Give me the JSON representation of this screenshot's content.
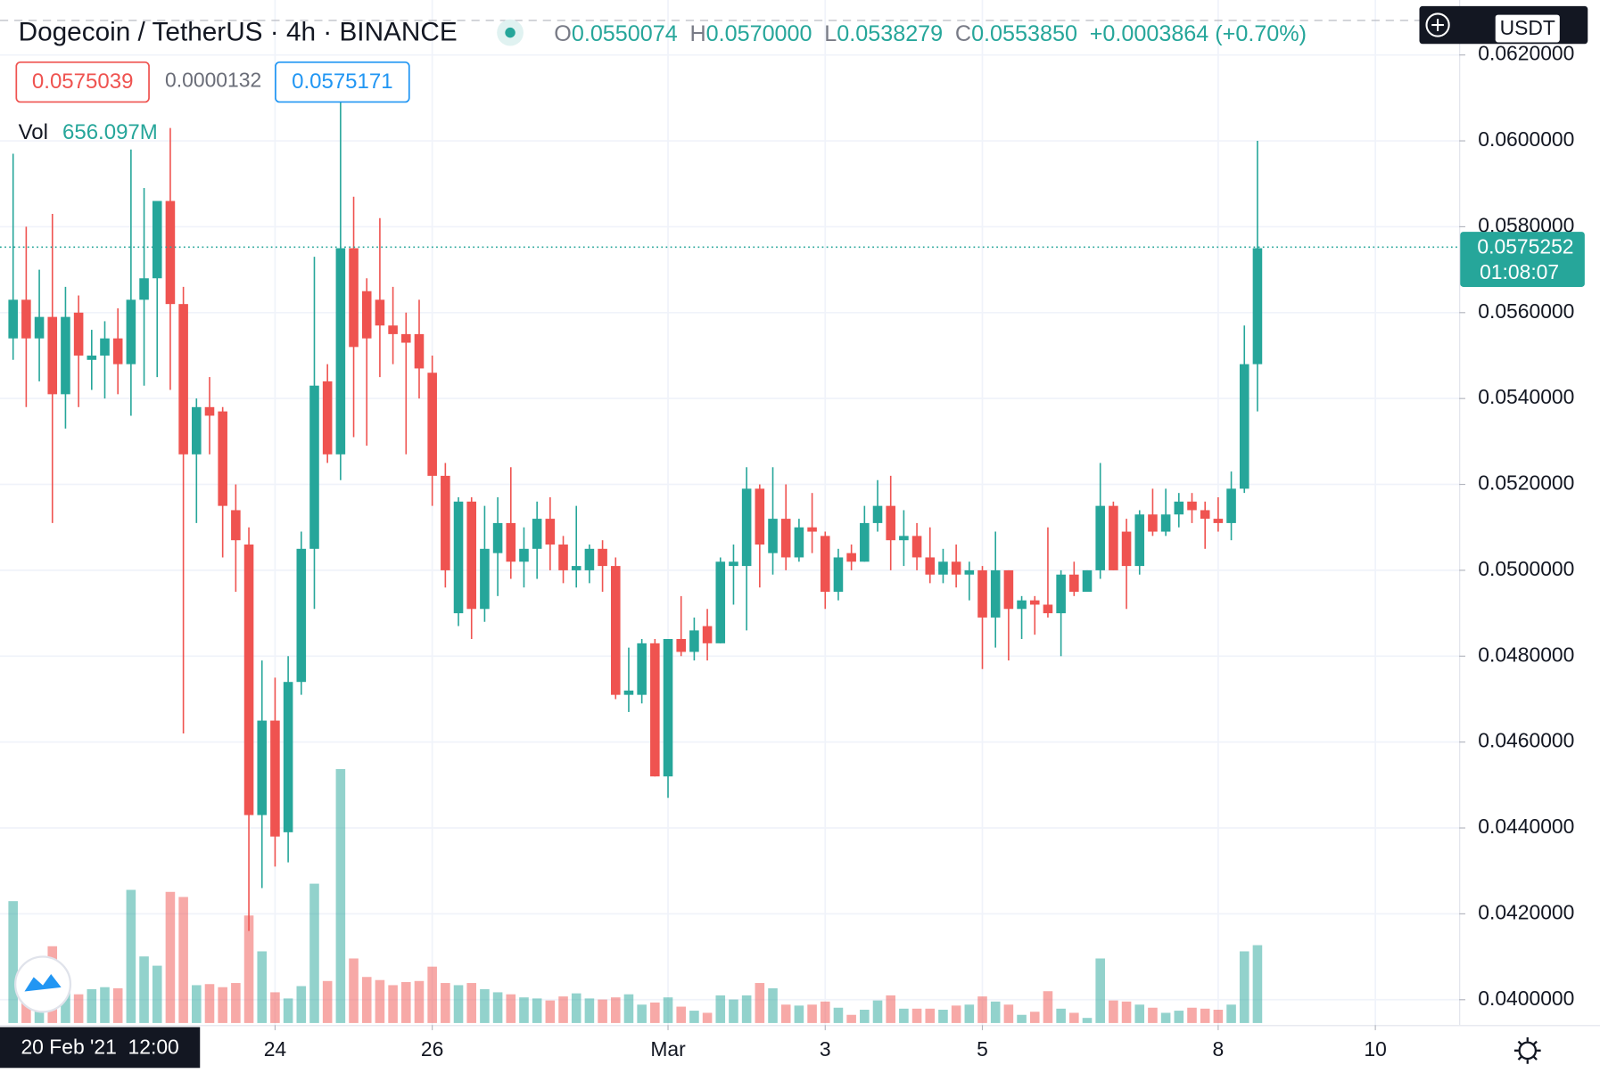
{
  "chart_data": {
    "type": "candlestick",
    "title": "Dogecoin / TetherUS · 4h · BINANCE",
    "ohlc_legend": [
      {
        "label": "O",
        "value": "0.0550074"
      },
      {
        "label": "H",
        "value": "0.0570000"
      },
      {
        "label": "L",
        "value": "0.0538279"
      },
      {
        "label": "C",
        "value": "0.0553850"
      }
    ],
    "change": "+0.0003864 (+0.70%)",
    "bid": "0.0575039",
    "spread": "0.0000132",
    "ask": "0.0575171",
    "currency": "USDT",
    "last_price": 0.0575252,
    "last_price_label": "0.0575252",
    "countdown": "01:08:07",
    "crosshair_label": "20 Feb '21  12:00",
    "up_color": "#26a69a",
    "down_color": "#ef5350",
    "grid": true,
    "ylim": [
      0.03941,
      0.06328
    ],
    "yticks": [
      {
        "value": 0.04,
        "label": "0.0400000"
      },
      {
        "value": 0.042,
        "label": "0.0420000"
      },
      {
        "value": 0.044,
        "label": "0.0440000"
      },
      {
        "value": 0.046,
        "label": "0.0460000"
      },
      {
        "value": 0.048,
        "label": "0.0480000"
      },
      {
        "value": 0.05,
        "label": "0.0500000"
      },
      {
        "value": 0.052,
        "label": "0.0520000"
      },
      {
        "value": 0.054,
        "label": "0.0540000"
      },
      {
        "value": 0.056,
        "label": "0.0560000"
      },
      {
        "value": 0.058,
        "label": "0.0580000"
      },
      {
        "value": 0.06,
        "label": "0.0600000"
      },
      {
        "value": 0.062,
        "label": "0.0620000"
      }
    ],
    "xlim": [
      -1,
      110.4
    ],
    "xticks": [
      {
        "value": 20,
        "label": "24"
      },
      {
        "value": 32,
        "label": "26"
      },
      {
        "value": 50,
        "label": "Mar"
      },
      {
        "value": 62,
        "label": "3"
      },
      {
        "value": 74,
        "label": "5"
      },
      {
        "value": 92,
        "label": "8"
      },
      {
        "value": 104,
        "label": "10"
      }
    ],
    "open": [
      0.0554,
      0.0563,
      0.0554,
      0.0559,
      0.0541,
      0.056,
      0.0549,
      0.055,
      0.0554,
      0.0548,
      0.0563,
      0.0568,
      0.0586,
      0.0562,
      0.0527,
      0.0538,
      0.0537,
      0.0514,
      0.0506,
      0.0443,
      0.0465,
      0.0439,
      0.0474,
      0.0505,
      0.0544,
      0.0527,
      0.0575,
      0.0565,
      0.0563,
      0.0557,
      0.0555,
      0.0555,
      0.0546,
      0.0522,
      0.049,
      0.0516,
      0.0491,
      0.0504,
      0.0511,
      0.0502,
      0.0505,
      0.0512,
      0.0506,
      0.05,
      0.05,
      0.0505,
      0.0501,
      0.0471,
      0.0471,
      0.0483,
      0.0452,
      0.0484,
      0.0481,
      0.0487,
      0.0483,
      0.0501,
      0.0501,
      0.0519,
      0.0504,
      0.0512,
      0.0503,
      0.051,
      0.0508,
      0.0495,
      0.0504,
      0.0502,
      0.0511,
      0.0515,
      0.0507,
      0.0508,
      0.0503,
      0.0499,
      0.0502,
      0.0499,
      0.05,
      0.0489,
      0.05,
      0.0491,
      0.0493,
      0.0492,
      0.049,
      0.0499,
      0.0495,
      0.05,
      0.0515,
      0.0509,
      0.0501,
      0.0513,
      0.0509,
      0.0513,
      0.0516,
      0.0514,
      0.0512,
      0.0511,
      0.0519,
      0.0548
    ],
    "high": [
      0.0597,
      0.058,
      0.057,
      0.0583,
      0.0566,
      0.0564,
      0.0556,
      0.0558,
      0.0561,
      0.0598,
      0.0589,
      0.0584,
      0.0603,
      0.0566,
      0.054,
      0.0545,
      0.0538,
      0.052,
      0.051,
      0.0479,
      0.0475,
      0.048,
      0.0509,
      0.0573,
      0.0548,
      0.0609,
      0.0587,
      0.0568,
      0.0582,
      0.0566,
      0.056,
      0.0563,
      0.055,
      0.0525,
      0.0517,
      0.0517,
      0.0515,
      0.0517,
      0.0524,
      0.051,
      0.0516,
      0.0517,
      0.0508,
      0.0515,
      0.0506,
      0.0507,
      0.0503,
      0.0482,
      0.0484,
      0.0484,
      0.0484,
      0.0494,
      0.0489,
      0.0491,
      0.0503,
      0.0506,
      0.0524,
      0.052,
      0.0524,
      0.052,
      0.0512,
      0.0518,
      0.0509,
      0.0505,
      0.0506,
      0.0515,
      0.0521,
      0.0522,
      0.0514,
      0.0511,
      0.051,
      0.0505,
      0.0506,
      0.0502,
      0.0501,
      0.0509,
      0.05,
      0.0494,
      0.0494,
      0.051,
      0.05,
      0.0502,
      0.05,
      0.0525,
      0.0516,
      0.0512,
      0.0514,
      0.0519,
      0.0519,
      0.0518,
      0.0518,
      0.0516,
      0.0517,
      0.0523,
      0.0557,
      0.06
    ],
    "low": [
      0.0549,
      0.0538,
      0.0544,
      0.0511,
      0.0533,
      0.0538,
      0.0542,
      0.054,
      0.0541,
      0.0536,
      0.0543,
      0.0545,
      0.0542,
      0.0462,
      0.0511,
      0.0527,
      0.0503,
      0.0495,
      0.0416,
      0.0426,
      0.0431,
      0.0432,
      0.0471,
      0.0491,
      0.0525,
      0.0521,
      0.0531,
      0.0529,
      0.0545,
      0.0548,
      0.0527,
      0.054,
      0.0515,
      0.0496,
      0.0487,
      0.0484,
      0.0488,
      0.0494,
      0.0498,
      0.0496,
      0.0498,
      0.05,
      0.0497,
      0.0496,
      0.0497,
      0.0495,
      0.047,
      0.0467,
      0.0469,
      0.0452,
      0.0447,
      0.048,
      0.0479,
      0.0479,
      0.0483,
      0.0492,
      0.0486,
      0.0496,
      0.0499,
      0.05,
      0.0502,
      0.0504,
      0.0491,
      0.0493,
      0.05,
      0.0502,
      0.0509,
      0.05,
      0.0501,
      0.05,
      0.0497,
      0.0497,
      0.0496,
      0.0493,
      0.0477,
      0.0482,
      0.0479,
      0.0484,
      0.0485,
      0.0489,
      0.048,
      0.0494,
      0.0495,
      0.0498,
      0.05,
      0.0491,
      0.0499,
      0.0508,
      0.0508,
      0.051,
      0.0511,
      0.0505,
      0.0509,
      0.0507,
      0.0518,
      0.0537
    ],
    "close": [
      0.0563,
      0.0554,
      0.0559,
      0.0541,
      0.0559,
      0.055,
      0.055,
      0.0554,
      0.0548,
      0.0563,
      0.0568,
      0.0586,
      0.0562,
      0.0527,
      0.0538,
      0.0536,
      0.0515,
      0.0507,
      0.0443,
      0.0465,
      0.0438,
      0.0474,
      0.0505,
      0.0543,
      0.0527,
      0.0575,
      0.0552,
      0.0554,
      0.0557,
      0.0555,
      0.0553,
      0.0547,
      0.0522,
      0.05,
      0.0516,
      0.0491,
      0.0505,
      0.0511,
      0.0502,
      0.0505,
      0.0512,
      0.0506,
      0.05,
      0.0501,
      0.0505,
      0.0501,
      0.0471,
      0.0472,
      0.0483,
      0.0452,
      0.0484,
      0.0481,
      0.0486,
      0.0483,
      0.0502,
      0.0502,
      0.0519,
      0.0506,
      0.0512,
      0.0503,
      0.051,
      0.0509,
      0.0495,
      0.0503,
      0.0502,
      0.0511,
      0.0515,
      0.0507,
      0.0508,
      0.0503,
      0.0499,
      0.0502,
      0.0499,
      0.05,
      0.0489,
      0.05,
      0.0491,
      0.0493,
      0.0492,
      0.049,
      0.0499,
      0.0495,
      0.05,
      0.0515,
      0.05,
      0.0501,
      0.0513,
      0.0509,
      0.0513,
      0.0516,
      0.0514,
      0.0512,
      0.0511,
      0.0519,
      0.0548,
      0.0575
    ],
    "volume": {
      "name": "Vol",
      "values": [
        1027,
        475,
        362,
        647,
        362,
        242,
        285,
        302,
        293,
        1122,
        561,
        483,
        1105,
        1062,
        319,
        328,
        302,
        337,
        906,
        604,
        259,
        207,
        311,
        1174,
        354,
        2140,
        544,
        388,
        362,
        319,
        345,
        354,
        475,
        337,
        319,
        337,
        285,
        259,
        242,
        216,
        207,
        190,
        224,
        250,
        207,
        198,
        216,
        242,
        155,
        173,
        216,
        138,
        104,
        86,
        233,
        198,
        233,
        337,
        293,
        155,
        147,
        155,
        181,
        129,
        69,
        112,
        190,
        233,
        121,
        121,
        121,
        112,
        147,
        155,
        224,
        181,
        155,
        69,
        95,
        268,
        121,
        86,
        43,
        544,
        190,
        181,
        155,
        129,
        86,
        104,
        129,
        121,
        112,
        155,
        604,
        656.097
      ],
      "value_labels": {
        "95": "656.097M"
      }
    }
  }
}
